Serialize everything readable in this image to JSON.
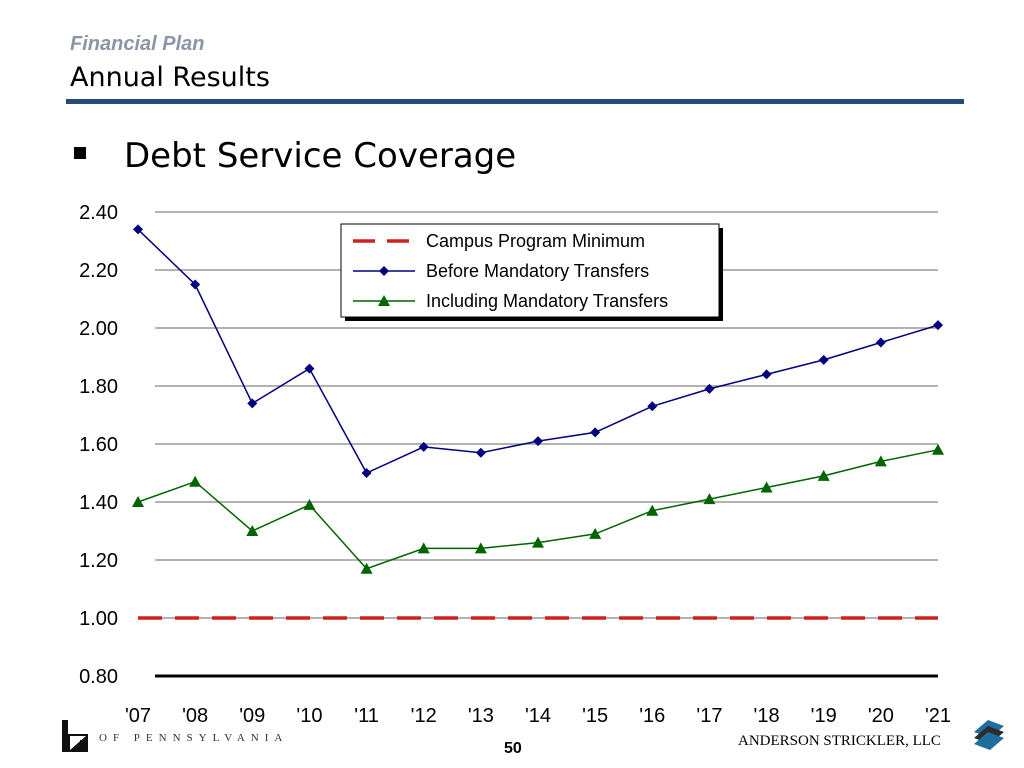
{
  "header": {
    "kicker": "Financial Plan",
    "title": "Annual Results"
  },
  "bullet": {
    "text": "Debt Service Coverage"
  },
  "footer": {
    "org_text": "OF PENNSYLVANIA",
    "page_number": "50",
    "firm_name": "ANDERSON STRICKLER, LLC"
  },
  "colors": {
    "header_rule": "#244a78",
    "minimum_series": "#d0211b",
    "before_series": "#000080",
    "including_series": "#006400"
  },
  "chart_data": {
    "type": "line",
    "title": "",
    "xlabel": "",
    "ylabel": "",
    "categories": [
      "'07",
      "'08",
      "'09",
      "'10",
      "'11",
      "'12",
      "'13",
      "'14",
      "'15",
      "'16",
      "'17",
      "'18",
      "'19",
      "'20",
      "'21"
    ],
    "y_ticks": [
      "2.40",
      "2.20",
      "2.00",
      "1.80",
      "1.60",
      "1.40",
      "1.20",
      "1.00",
      "0.80"
    ],
    "ylim": [
      0.8,
      2.4
    ],
    "grid": true,
    "legend_position": "top-center",
    "series": [
      {
        "name": "Campus Program Minimum",
        "style": "dashed",
        "marker": "none",
        "color": "#d0211b",
        "values": [
          1.0,
          1.0,
          1.0,
          1.0,
          1.0,
          1.0,
          1.0,
          1.0,
          1.0,
          1.0,
          1.0,
          1.0,
          1.0,
          1.0,
          1.0
        ]
      },
      {
        "name": "Before Mandatory Transfers",
        "style": "solid",
        "marker": "diamond",
        "color": "#000080",
        "values": [
          2.34,
          2.15,
          1.74,
          1.86,
          1.5,
          1.59,
          1.57,
          1.61,
          1.64,
          1.73,
          1.79,
          1.84,
          1.89,
          1.95,
          2.01
        ]
      },
      {
        "name": "Including Mandatory Transfers",
        "style": "solid",
        "marker": "triangle",
        "color": "#006400",
        "values": [
          1.4,
          1.47,
          1.3,
          1.39,
          1.17,
          1.24,
          1.24,
          1.26,
          1.29,
          1.37,
          1.41,
          1.45,
          1.49,
          1.54,
          1.58
        ]
      }
    ]
  }
}
